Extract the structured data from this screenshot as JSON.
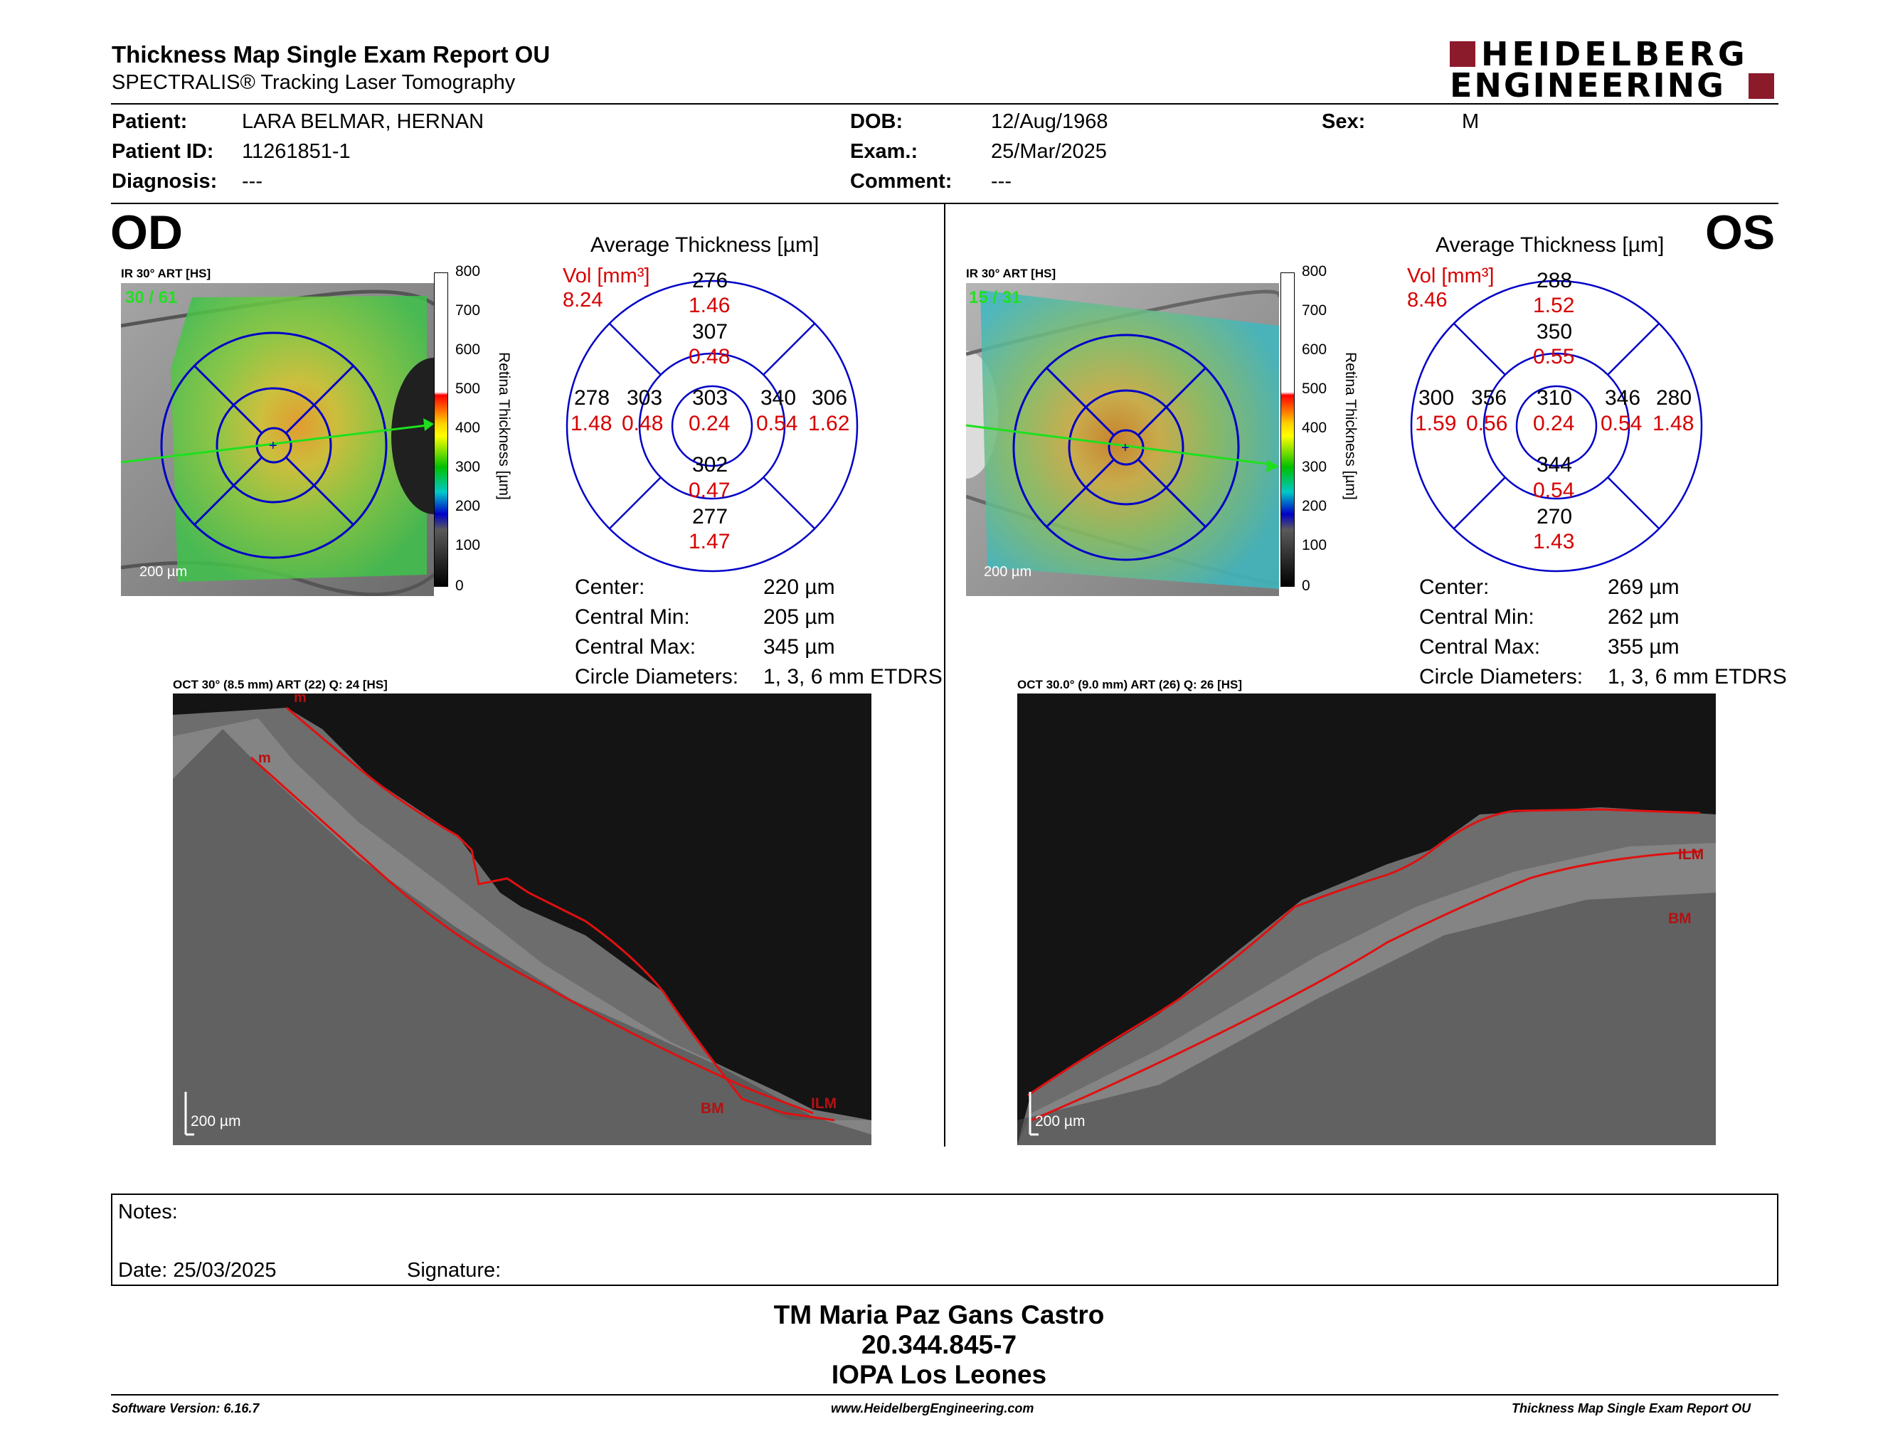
{
  "header": {
    "title": "Thickness Map Single Exam Report OU",
    "subtitle": "SPECTRALIS® Tracking Laser Tomography",
    "logo_line1": "HEIDELBERG",
    "logo_line2": "ENGINEERING",
    "logo_color": "#8b1a2b"
  },
  "patient": {
    "patient_label": "Patient:",
    "patient_value": "LARA BELMAR, HERNAN",
    "id_label": "Patient ID:",
    "id_value": "11261851-1",
    "diagnosis_label": "Diagnosis:",
    "diagnosis_value": "---",
    "dob_label": "DOB:",
    "dob_value": "12/Aug/1968",
    "exam_label": "Exam.:",
    "exam_value": "25/Mar/2025",
    "comment_label": "Comment:",
    "comment_value": "---",
    "sex_label": "Sex:",
    "sex_value": "M"
  },
  "od": {
    "eye": "OD",
    "ir_label": "IR 30° ART [HS]",
    "frames": "30 / 61",
    "scale": "200 µm",
    "avg_title": "Average Thickness [µm]",
    "vol_label": "Vol [mm³]",
    "vol_value": "8.24",
    "sectors": {
      "outer_sup": {
        "t": "276",
        "v": "1.46"
      },
      "inner_sup": {
        "t": "307",
        "v": "0.48"
      },
      "center": {
        "t": "303",
        "v": "0.24"
      },
      "outer_temp": {
        "t": "278",
        "v": "1.48"
      },
      "inner_temp": {
        "t": "303",
        "v": "0.48"
      },
      "inner_nasal": {
        "t": "340",
        "v": "0.54"
      },
      "outer_nasal": {
        "t": "306",
        "v": "1.62"
      },
      "inner_inf": {
        "t": "302",
        "v": "0.47"
      },
      "outer_inf": {
        "t": "277",
        "v": "1.47"
      }
    },
    "stats": [
      {
        "label": "Center:",
        "value": "220 µm"
      },
      {
        "label": "Central Min:",
        "value": "205 µm"
      },
      {
        "label": "Central Max:",
        "value": "345 µm"
      },
      {
        "label": "Circle Diameters:",
        "value": "1, 3, 6 mm ETDRS"
      }
    ],
    "oct_label": "OCT 30° (8.5 mm) ART (22) Q: 24 [HS]",
    "oct_scale": "200 µm",
    "marker_ilm": "ILM",
    "marker_bm": "BM",
    "marker_m": "m"
  },
  "os": {
    "eye": "OS",
    "ir_label": "IR 30° ART [HS]",
    "frames": "15 / 31",
    "scale": "200 µm",
    "avg_title": "Average Thickness [µm]",
    "vol_label": "Vol [mm³]",
    "vol_value": "8.46",
    "sectors": {
      "outer_sup": {
        "t": "288",
        "v": "1.52"
      },
      "inner_sup": {
        "t": "350",
        "v": "0.55"
      },
      "center": {
        "t": "310",
        "v": "0.24"
      },
      "outer_temp": {
        "t": "300",
        "v": "1.59"
      },
      "inner_temp": {
        "t": "356",
        "v": "0.56"
      },
      "inner_nasal": {
        "t": "346",
        "v": "0.54"
      },
      "outer_nasal": {
        "t": "280",
        "v": "1.48"
      },
      "inner_inf": {
        "t": "344",
        "v": "0.54"
      },
      "outer_inf": {
        "t": "270",
        "v": "1.43"
      }
    },
    "stats": [
      {
        "label": "Center:",
        "value": "269 µm"
      },
      {
        "label": "Central Min:",
        "value": "262 µm"
      },
      {
        "label": "Central Max:",
        "value": "355 µm"
      },
      {
        "label": "Circle Diameters:",
        "value": "1, 3, 6 mm ETDRS"
      }
    ],
    "oct_label": "OCT 30.0° (9.0 mm) ART (26) Q: 26 [HS]",
    "oct_scale": "200 µm",
    "marker_ilm": "ILM",
    "marker_bm": "BM"
  },
  "colorbar": {
    "ticks": [
      "800",
      "700",
      "600",
      "500",
      "400",
      "300",
      "200",
      "100",
      "0"
    ],
    "title": "Retina Thickness [µm]"
  },
  "notes": {
    "notes_label": "Notes:",
    "date_label": "Date: 25/03/2025",
    "signature_label": "Signature:"
  },
  "signature": {
    "name": "TM Maria Paz Gans Castro",
    "id": "20.344.845-7",
    "clinic": "IOPA Los Leones"
  },
  "footer": {
    "software": "Software Version: 6.16.7",
    "url": "www.HeidelbergEngineering.com",
    "report": "Thickness Map Single Exam Report OU"
  }
}
